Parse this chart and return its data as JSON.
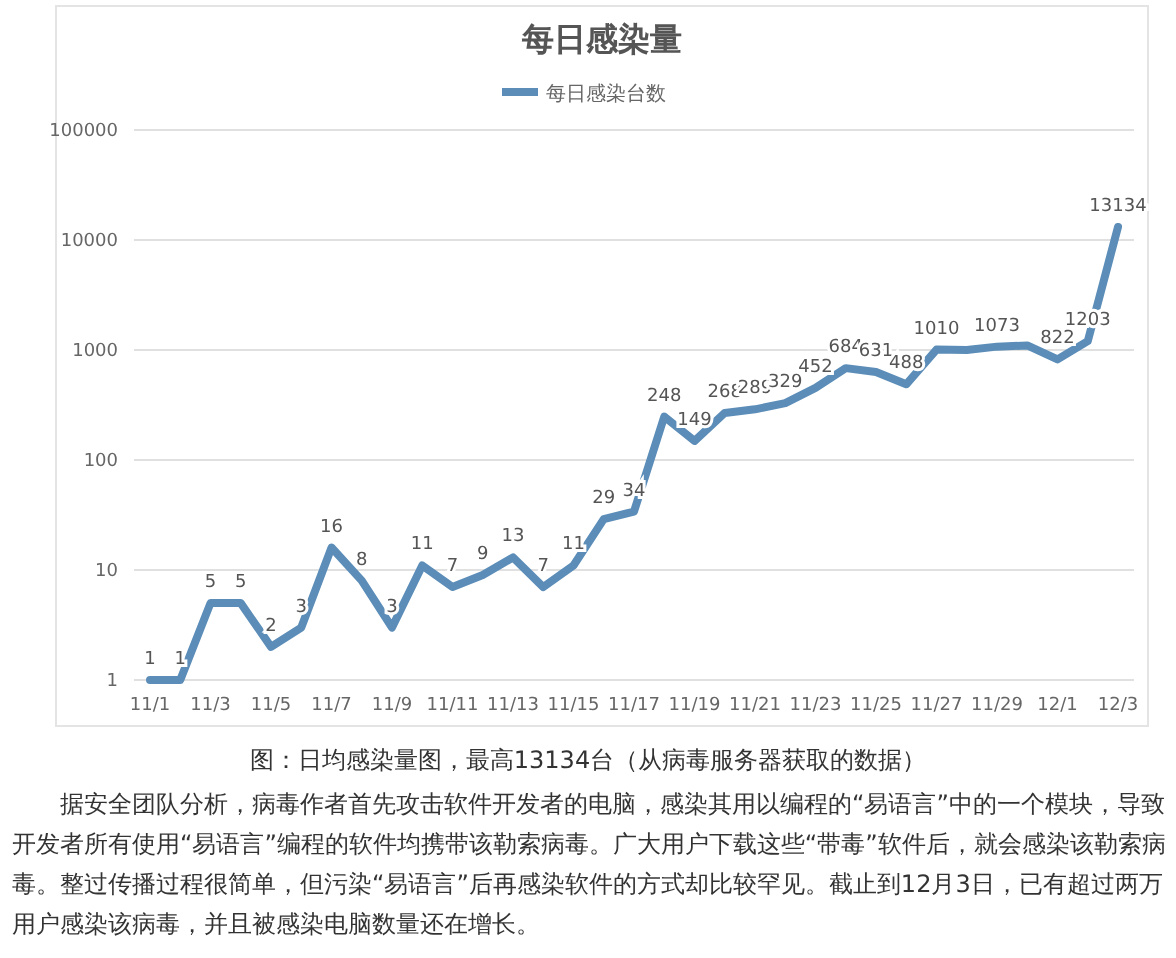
{
  "chart_data": {
    "type": "line",
    "title": "每日感染量",
    "log": true,
    "legend": "top",
    "grid": "y",
    "marker": "none",
    "line_style": "solid",
    "categories": [
      "11/1",
      null,
      "11/3",
      null,
      "11/5",
      null,
      "11/7",
      null,
      "11/9",
      null,
      "11/11",
      null,
      "11/13",
      null,
      "11/15",
      null,
      "11/17",
      null,
      "11/19",
      null,
      "11/21",
      null,
      "11/23",
      null,
      "11/25",
      null,
      "11/27",
      null,
      "11/29",
      null,
      "12/1",
      null,
      "12/3"
    ],
    "series": [
      {
        "name": "每日感染台数",
        "color": "#5b8db8",
        "values": [
          1,
          1,
          5,
          5,
          2,
          3,
          16,
          8,
          3,
          11,
          7,
          9,
          13,
          7,
          11,
          29,
          34,
          248,
          149,
          268,
          289,
          329,
          452,
          684,
          631,
          488,
          1010,
          1000,
          1073,
          1100,
          822,
          1203,
          13134
        ],
        "value_labels": [
          "1",
          "1",
          "5",
          "5",
          "2",
          "3",
          "16",
          "8",
          "3",
          "11",
          "7",
          "9",
          "13",
          "7",
          "11",
          "29",
          "34",
          "248",
          "149",
          "268",
          "289",
          "329",
          "452",
          "684",
          "631",
          "488",
          "1010",
          null,
          "1073",
          null,
          "822",
          "1203",
          "13134"
        ]
      }
    ],
    "ylim": [
      1,
      100000
    ],
    "yticks": [
      1,
      10,
      100,
      1000,
      10000,
      100000
    ],
    "annotations": [
      "图：日均感染量图，最高13134台（从病毒服务器获取的数据）",
      "据安全团队分析，病毒作者首先攻击软件开发者的电脑，感染其用以编程的“易语言”中的一个模块，导致开发者所有使用“易语言”编程的软件均携带该勒索病毒。广大用户下载这些“带毒”软件后，就会感染该勒索病毒。整过传播过程很简单，但污染“易语言”后再感染软件的方式却比较罕见。截止到12月3日，已有超过两万用户感染该病毒，并且被感染电脑数量还在增长。"
    ]
  }
}
